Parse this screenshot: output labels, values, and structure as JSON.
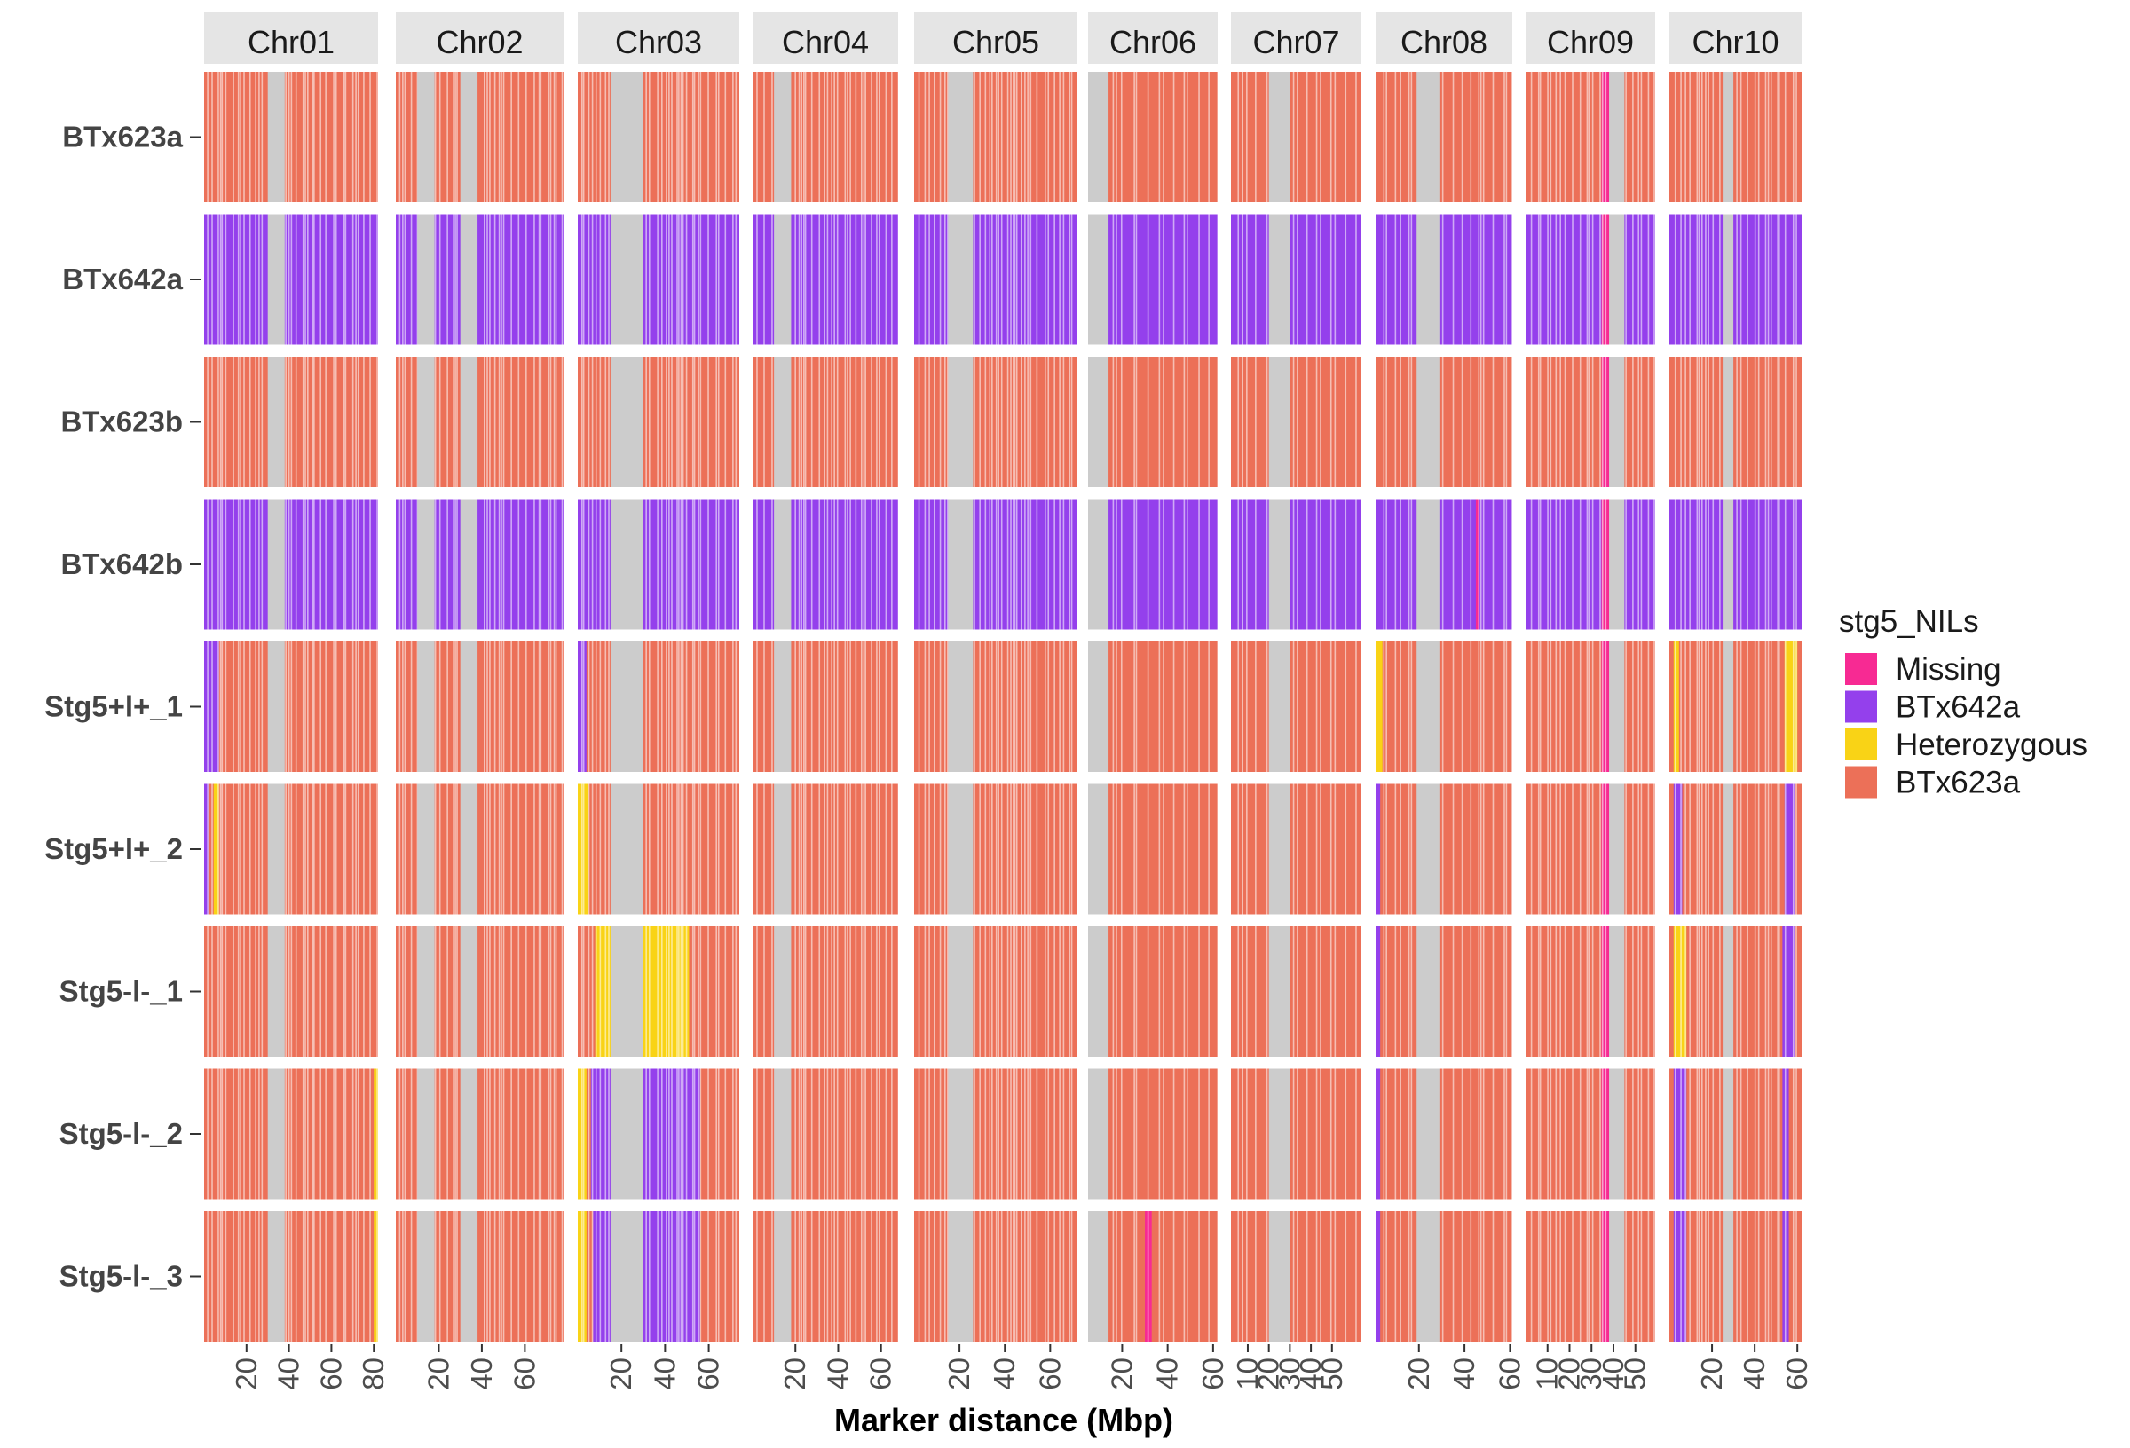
{
  "chart_data": {
    "type": "heatmap",
    "xlabel": "Marker distance (Mbp)",
    "ylabel": "",
    "legend_title": "stg5_NILs",
    "legend_position": "right",
    "rows": [
      "BTx623a",
      "BTx642a",
      "BTx623b",
      "BTx642b",
      "Stg5+l+_1",
      "Stg5+l+_2",
      "Stg5-l-_1",
      "Stg5-l-_2",
      "Stg5-l-_3"
    ],
    "categories": [
      {
        "key": "missing",
        "label": "Missing",
        "color": "#f72a93"
      },
      {
        "key": "btx642a",
        "label": "BTx642a",
        "color": "#9440ec"
      },
      {
        "key": "het",
        "label": "Heterozygous",
        "color": "#f9d316"
      },
      {
        "key": "btx623a",
        "label": "BTx623a",
        "color": "#ec7058"
      }
    ],
    "colors": {
      "no_marker": "#cccccc",
      "strip_bg": "#e5e5e5",
      "marker_line": "#ffffff"
    },
    "chromosomes": [
      {
        "name": "Chr01",
        "xlim": [
          0,
          82
        ],
        "ticks": [
          20,
          40,
          60,
          80
        ],
        "tick_labels": [
          "20",
          "40",
          "60",
          "80"
        ],
        "gaps": [
          [
            30,
            38
          ]
        ],
        "marker_density": 3,
        "segments": {
          "Stg5+l+_1": [
            {
              "start": 0,
              "end": 7,
              "value": "btx642a"
            }
          ],
          "Stg5+l+_2": [
            {
              "start": 0,
              "end": 2,
              "value": "btx642a"
            },
            {
              "start": 4.5,
              "end": 7,
              "value": "het"
            }
          ],
          "Stg5-l-_2": [
            {
              "start": 80,
              "end": 82,
              "value": "het"
            }
          ],
          "Stg5-l-_3": [
            {
              "start": 80,
              "end": 82,
              "value": "het"
            }
          ]
        }
      },
      {
        "name": "Chr02",
        "xlim": [
          0,
          78
        ],
        "ticks": [
          20,
          40,
          60
        ],
        "tick_labels": [
          "20",
          "40",
          "60"
        ],
        "gaps": [
          [
            10,
            18
          ],
          [
            30,
            38
          ]
        ],
        "marker_density": 3,
        "segments": {}
      },
      {
        "name": "Chr03",
        "xlim": [
          0,
          74
        ],
        "ticks": [
          20,
          40,
          60
        ],
        "tick_labels": [
          "20",
          "40",
          "60"
        ],
        "gaps": [
          [
            15,
            30
          ]
        ],
        "marker_density": 3,
        "segments": {
          "Stg5+l+_1": [
            {
              "start": 0,
              "end": 4,
              "value": "btx642a"
            }
          ],
          "Stg5+l+_2": [
            {
              "start": 0,
              "end": 5,
              "value": "het"
            }
          ],
          "Stg5-l-_1": [
            {
              "start": 8,
              "end": 16,
              "value": "het"
            },
            {
              "start": 30,
              "end": 51,
              "value": "het"
            }
          ],
          "Stg5-l-_2": [
            {
              "start": 0,
              "end": 4,
              "value": "het"
            },
            {
              "start": 6,
              "end": 16,
              "value": "btx642a"
            },
            {
              "start": 30,
              "end": 56,
              "value": "btx642a"
            }
          ],
          "Stg5-l-_3": [
            {
              "start": 0,
              "end": 4,
              "value": "het"
            },
            {
              "start": 7,
              "end": 16,
              "value": "btx642a"
            },
            {
              "start": 30,
              "end": 56,
              "value": "btx642a"
            }
          ]
        }
      },
      {
        "name": "Chr04",
        "xlim": [
          0,
          68
        ],
        "ticks": [
          20,
          40,
          60
        ],
        "tick_labels": [
          "20",
          "40",
          "60"
        ],
        "gaps": [
          [
            10,
            18
          ]
        ],
        "marker_density": 3,
        "segments": {}
      },
      {
        "name": "Chr05",
        "xlim": [
          0,
          72
        ],
        "ticks": [
          20,
          40,
          60
        ],
        "tick_labels": [
          "20",
          "40",
          "60"
        ],
        "gaps": [
          [
            15,
            26
          ]
        ],
        "marker_density": 3,
        "segments": {}
      },
      {
        "name": "Chr06",
        "xlim": [
          5,
          62
        ],
        "ticks": [
          20,
          40,
          60
        ],
        "tick_labels": [
          "20",
          "40",
          "60"
        ],
        "gaps": [
          [
            5,
            14
          ]
        ],
        "marker_density": 2,
        "segments": {
          "Stg5-l-_3": [
            {
              "start": 30,
              "end": 33,
              "value": "missing"
            }
          ]
        }
      },
      {
        "name": "Chr07",
        "xlim": [
          2,
          64
        ],
        "ticks": [
          10,
          20,
          30,
          40,
          50
        ],
        "tick_labels": [
          "10",
          "20",
          "30",
          "40",
          "50"
        ],
        "gaps": [
          [
            20,
            30
          ]
        ],
        "marker_density": 2,
        "segments": {}
      },
      {
        "name": "Chr08",
        "xlim": [
          1,
          61
        ],
        "ticks": [
          20,
          40,
          60
        ],
        "tick_labels": [
          "20",
          "40",
          "60"
        ],
        "gaps": [
          [
            19,
            29
          ]
        ],
        "marker_density": 2,
        "segments": {
          "BTx642b": [
            {
              "start": 45,
              "end": 46.5,
              "value": "missing"
            }
          ],
          "Stg5+l+_1": [
            {
              "start": 1,
              "end": 4,
              "value": "het"
            }
          ],
          "Stg5+l+_2": [
            {
              "start": 1,
              "end": 3,
              "value": "btx642a"
            }
          ],
          "Stg5-l-_1": [
            {
              "start": 1,
              "end": 3,
              "value": "btx642a"
            }
          ],
          "Stg5-l-_2": [
            {
              "start": 1,
              "end": 3,
              "value": "btx642a"
            }
          ],
          "Stg5-l-_3": [
            {
              "start": 1,
              "end": 3,
              "value": "btx642a"
            }
          ]
        }
      },
      {
        "name": "Chr09",
        "xlim": [
          0,
          59
        ],
        "ticks": [
          10,
          20,
          30,
          40,
          50
        ],
        "tick_labels": [
          "10",
          "20",
          "30",
          "40",
          "50"
        ],
        "gaps": [
          [
            38,
            45
          ]
        ],
        "marker_density": 3,
        "segments": {
          "all": [
            {
              "start": 34.5,
              "end": 38.5,
              "value": "missing"
            }
          ]
        }
      },
      {
        "name": "Chr10",
        "xlim": [
          0,
          62
        ],
        "ticks": [
          20,
          40,
          60
        ],
        "tick_labels": [
          "20",
          "40",
          "60"
        ],
        "gaps": [
          [
            25,
            30
          ]
        ],
        "marker_density": 3,
        "segments": {
          "Stg5+l+_1": [
            {
              "start": 2,
              "end": 4.5,
              "value": "het"
            },
            {
              "start": 54,
              "end": 60,
              "value": "het"
            }
          ],
          "Stg5+l+_2": [
            {
              "start": 2,
              "end": 6,
              "value": "btx642a"
            },
            {
              "start": 54,
              "end": 59,
              "value": "btx642a"
            }
          ],
          "Stg5-l-_1": [
            {
              "start": 2,
              "end": 8,
              "value": "het"
            },
            {
              "start": 53,
              "end": 59,
              "value": "btx642a"
            }
          ],
          "Stg5-l-_2": [
            {
              "start": 2,
              "end": 8,
              "value": "btx642a"
            },
            {
              "start": 53,
              "end": 56,
              "value": "btx642a"
            }
          ],
          "Stg5-l-_3": [
            {
              "start": 2,
              "end": 8,
              "value": "btx642a"
            },
            {
              "start": 53,
              "end": 56,
              "value": "btx642a"
            }
          ]
        }
      }
    ],
    "base_genotype": {
      "BTx623a": "btx623a",
      "BTx642a": "btx642a",
      "BTx623b": "btx623a",
      "BTx642b": "btx642a",
      "Stg5+l+_1": "btx623a",
      "Stg5+l+_2": "btx623a",
      "Stg5-l-_1": "btx623a",
      "Stg5-l-_2": "btx623a",
      "Stg5-l-_3": "btx623a"
    }
  }
}
